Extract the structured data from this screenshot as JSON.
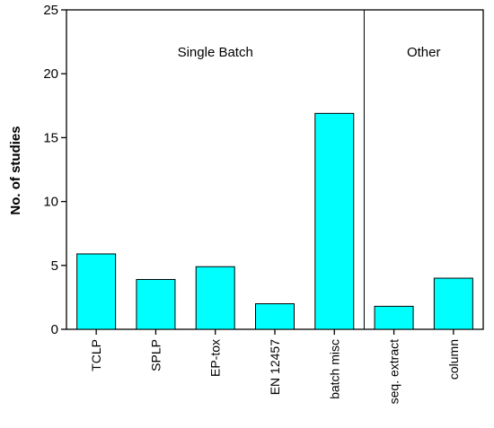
{
  "chart_data": {
    "type": "bar",
    "categories": [
      "TCLP",
      "SPLP",
      "EP-tox",
      "EN 12457",
      "batch misc",
      "seq. extract",
      "column"
    ],
    "values": [
      5.9,
      3.9,
      4.9,
      2.0,
      16.9,
      1.8,
      4.0
    ],
    "ylabel": "No. of studies",
    "xlabel": "",
    "ylim": [
      0,
      25
    ],
    "yticks": [
      0,
      5,
      10,
      15,
      20,
      25
    ],
    "bar_color": "#00ffff",
    "grid": false,
    "groups": [
      {
        "label": "Single Batch",
        "categories": [
          "TCLP",
          "SPLP",
          "EP-tox",
          "EN 12457",
          "batch misc"
        ]
      },
      {
        "label": "Other",
        "categories": [
          "seq. extract",
          "column"
        ]
      }
    ]
  }
}
